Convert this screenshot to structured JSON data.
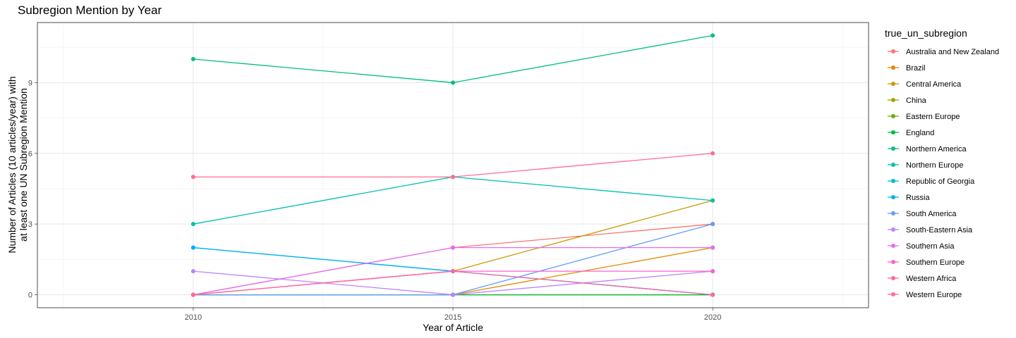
{
  "chart_data": {
    "type": "line",
    "title": "Subregion Mention by Year",
    "xlabel": "Year of Article",
    "ylabel_lines": [
      "Number of Articles (10 articles/year) with",
      "at least one UN Subregion Mention"
    ],
    "x": [
      2010,
      2015,
      2020
    ],
    "x_ticks": [
      2010,
      2015,
      2020
    ],
    "xlim": [
      2007,
      2023
    ],
    "y_ticks": [
      0,
      3,
      6,
      9
    ],
    "ylim": [
      -0.55,
      11.55
    ],
    "grid": true,
    "legend_position": "right",
    "legend_title": "true_un_subregion",
    "series": [
      {
        "name": "Australia and New Zealand",
        "color": "#F8766D",
        "values": [
          0,
          2,
          3
        ]
      },
      {
        "name": "Brazil",
        "color": "#E58700",
        "values": [
          0,
          0,
          2
        ]
      },
      {
        "name": "Central America",
        "color": "#C99800",
        "values": [
          0,
          1,
          4
        ]
      },
      {
        "name": "China",
        "color": "#A3A500",
        "values": [
          0,
          0,
          0
        ]
      },
      {
        "name": "Eastern Europe",
        "color": "#6BB100",
        "values": [
          0,
          0,
          0
        ]
      },
      {
        "name": "England",
        "color": "#00BA38",
        "values": [
          0,
          0,
          0
        ]
      },
      {
        "name": "Northern America",
        "color": "#00BF7D",
        "values": [
          10,
          9,
          11
        ]
      },
      {
        "name": "Northern Europe",
        "color": "#00C0AF",
        "values": [
          3,
          5,
          4
        ]
      },
      {
        "name": "Republic of Georgia",
        "color": "#00BCD8",
        "values": [
          2,
          1,
          0
        ]
      },
      {
        "name": "Russia",
        "color": "#00B0F6",
        "values": [
          2,
          1,
          0
        ]
      },
      {
        "name": "South America",
        "color": "#619CFF",
        "values": [
          0,
          0,
          3
        ]
      },
      {
        "name": "South-Eastern Asia",
        "color": "#B983FF",
        "values": [
          1,
          0,
          1
        ]
      },
      {
        "name": "Southern Asia",
        "color": "#E76BF3",
        "values": [
          0,
          2,
          2
        ]
      },
      {
        "name": "Southern Europe",
        "color": "#FD61D1",
        "values": [
          0,
          1,
          1
        ]
      },
      {
        "name": "Western Africa",
        "color": "#FF67A4",
        "values": [
          0,
          1,
          0
        ]
      },
      {
        "name": "Western Europe",
        "color": "#FF6C91",
        "values": [
          5,
          5,
          6
        ]
      }
    ]
  }
}
